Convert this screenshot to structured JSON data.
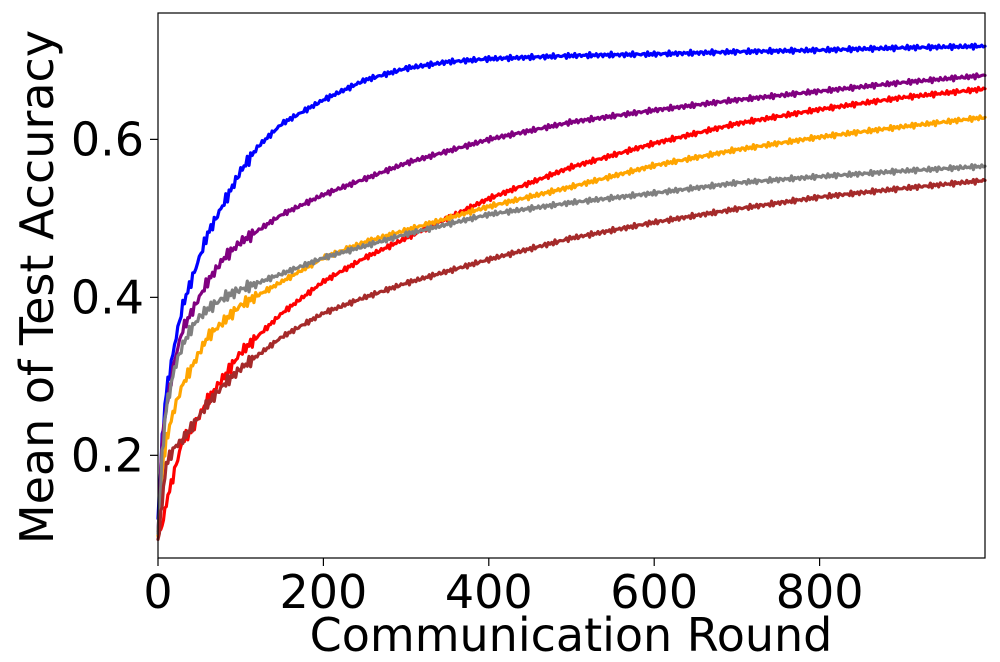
{
  "chart_data": {
    "type": "line",
    "xlabel": "Communication Round",
    "ylabel": "Mean of Test Accuracy",
    "xlim": [
      0,
      1000
    ],
    "ylim": [
      0.07,
      0.76
    ],
    "xticks": [
      0,
      200,
      400,
      600,
      800
    ],
    "yticks": [
      0.2,
      0.4,
      0.6
    ],
    "ytick_labels": [
      "0.2",
      "0.4",
      "0.6"
    ],
    "grid": false,
    "series": [
      {
        "color": "#0000ff",
        "x": [
          0,
          5,
          10,
          20,
          30,
          40,
          50,
          60,
          80,
          100,
          120,
          150,
          200,
          250,
          300,
          350,
          400,
          500,
          600,
          700,
          800,
          900,
          1000
        ],
        "y": [
          0.12,
          0.22,
          0.28,
          0.34,
          0.39,
          0.42,
          0.45,
          0.48,
          0.52,
          0.56,
          0.59,
          0.62,
          0.65,
          0.675,
          0.69,
          0.698,
          0.702,
          0.706,
          0.708,
          0.711,
          0.713,
          0.716,
          0.718
        ]
      },
      {
        "color": "#800080",
        "x": [
          0,
          5,
          10,
          20,
          30,
          40,
          50,
          60,
          80,
          100,
          150,
          200,
          250,
          300,
          400,
          500,
          600,
          700,
          800,
          900,
          1000
        ],
        "y": [
          0.1,
          0.22,
          0.26,
          0.32,
          0.36,
          0.38,
          0.4,
          0.42,
          0.45,
          0.47,
          0.505,
          0.53,
          0.55,
          0.57,
          0.6,
          0.622,
          0.637,
          0.65,
          0.661,
          0.672,
          0.681
        ]
      },
      {
        "color": "#ff0000",
        "x": [
          0,
          5,
          10,
          20,
          30,
          40,
          50,
          60,
          80,
          100,
          150,
          200,
          250,
          300,
          350,
          400,
          450,
          500,
          600,
          700,
          800,
          900,
          1000
        ],
        "y": [
          0.1,
          0.11,
          0.14,
          0.18,
          0.22,
          0.23,
          0.25,
          0.27,
          0.3,
          0.33,
          0.38,
          0.42,
          0.45,
          0.475,
          0.5,
          0.525,
          0.545,
          0.565,
          0.595,
          0.62,
          0.638,
          0.653,
          0.664
        ]
      },
      {
        "color": "#ffa500",
        "x": [
          0,
          5,
          10,
          20,
          30,
          40,
          50,
          60,
          80,
          100,
          150,
          200,
          250,
          300,
          400,
          500,
          600,
          700,
          800,
          900,
          1000
        ],
        "y": [
          0.1,
          0.18,
          0.22,
          0.26,
          0.29,
          0.31,
          0.33,
          0.35,
          0.37,
          0.39,
          0.42,
          0.45,
          0.47,
          0.485,
          0.515,
          0.54,
          0.567,
          0.587,
          0.603,
          0.616,
          0.628
        ]
      },
      {
        "color": "#808080",
        "x": [
          0,
          5,
          10,
          20,
          30,
          40,
          50,
          60,
          80,
          100,
          150,
          200,
          250,
          300,
          400,
          500,
          600,
          700,
          800,
          900,
          1000
        ],
        "y": [
          0.1,
          0.2,
          0.26,
          0.31,
          0.34,
          0.36,
          0.375,
          0.385,
          0.4,
          0.41,
          0.43,
          0.45,
          0.465,
          0.48,
          0.505,
          0.52,
          0.532,
          0.545,
          0.553,
          0.56,
          0.566
        ]
      },
      {
        "color": "#a52a2a",
        "x": [
          0,
          5,
          10,
          20,
          30,
          40,
          50,
          60,
          80,
          100,
          150,
          200,
          250,
          300,
          400,
          500,
          600,
          700,
          800,
          900,
          1000
        ],
        "y": [
          0.09,
          0.14,
          0.19,
          0.21,
          0.22,
          0.235,
          0.25,
          0.265,
          0.29,
          0.31,
          0.35,
          0.38,
          0.4,
          0.418,
          0.448,
          0.475,
          0.495,
          0.512,
          0.527,
          0.538,
          0.548
        ]
      }
    ]
  }
}
